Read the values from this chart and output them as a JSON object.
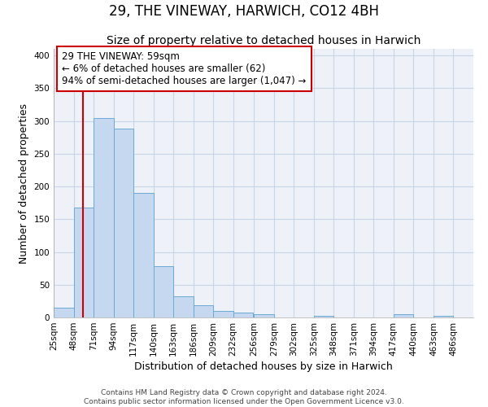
{
  "title": "29, THE VINEWAY, HARWICH, CO12 4BH",
  "subtitle": "Size of property relative to detached houses in Harwich",
  "xlabel": "Distribution of detached houses by size in Harwich",
  "ylabel": "Number of detached properties",
  "bar_left_edges": [
    25,
    48,
    71,
    94,
    117,
    140,
    163,
    186,
    209,
    232,
    256,
    279,
    302,
    325,
    348,
    371,
    394,
    417,
    440,
    463
  ],
  "bar_heights": [
    15,
    168,
    305,
    288,
    190,
    78,
    32,
    19,
    10,
    8,
    5,
    0,
    0,
    3,
    0,
    0,
    0,
    5,
    0,
    3
  ],
  "bin_width": 23,
  "bar_color": "#c5d8f0",
  "bar_edge_color": "#6aaad4",
  "vline_x": 59,
  "vline_color": "#cc0000",
  "annotation_text": "29 THE VINEWAY: 59sqm\n← 6% of detached houses are smaller (62)\n94% of semi-detached houses are larger (1,047) →",
  "annotation_box_color": "#ffffff",
  "annotation_box_edge_color": "#cc0000",
  "ylim": [
    0,
    410
  ],
  "yticks": [
    0,
    50,
    100,
    150,
    200,
    250,
    300,
    350,
    400
  ],
  "x_tick_labels": [
    "25sqm",
    "48sqm",
    "71sqm",
    "94sqm",
    "117sqm",
    "140sqm",
    "163sqm",
    "186sqm",
    "209sqm",
    "232sqm",
    "256sqm",
    "279sqm",
    "302sqm",
    "325sqm",
    "348sqm",
    "371sqm",
    "394sqm",
    "417sqm",
    "440sqm",
    "463sqm",
    "486sqm"
  ],
  "x_tick_positions": [
    25,
    48,
    71,
    94,
    117,
    140,
    163,
    186,
    209,
    232,
    256,
    279,
    302,
    325,
    348,
    371,
    394,
    417,
    440,
    463,
    486
  ],
  "footer_text": "Contains HM Land Registry data © Crown copyright and database right 2024.\nContains public sector information licensed under the Open Government Licence v3.0.",
  "background_color": "#ffffff",
  "plot_bg_color": "#eef2f8",
  "grid_color": "#c8d4e8",
  "title_fontsize": 12,
  "subtitle_fontsize": 10,
  "axis_label_fontsize": 9,
  "tick_fontsize": 7.5,
  "annotation_fontsize": 8.5,
  "footer_fontsize": 6.5
}
